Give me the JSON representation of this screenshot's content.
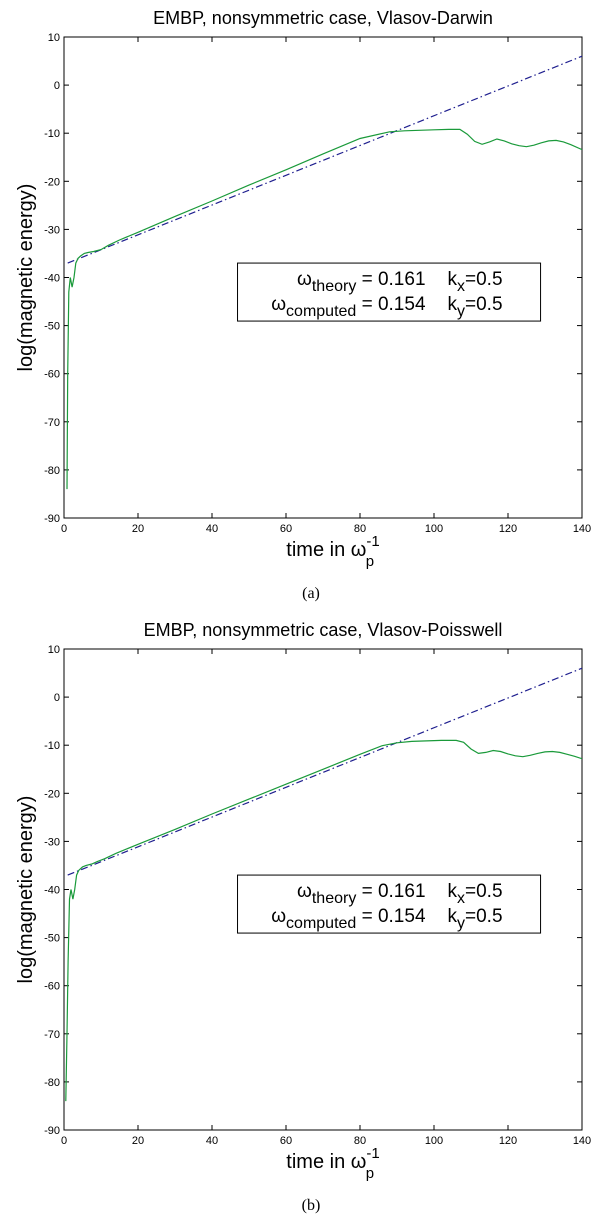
{
  "chart_data": [
    {
      "type": "line",
      "title": "EMBP,  nonsymmetric case, Vlasov-Darwin",
      "xlabel": "time in ω",
      "xlabel_sub": "p",
      "xlabel_sup": "-1",
      "ylabel": "log(magnetic energy)",
      "xlim": [
        0,
        140
      ],
      "ylim": [
        -90,
        10
      ],
      "xticks": [
        0,
        20,
        40,
        60,
        80,
        100,
        120,
        140
      ],
      "yticks": [
        10,
        0,
        -10,
        -20,
        -30,
        -40,
        -50,
        -60,
        -70,
        -80,
        -90
      ],
      "grid": false,
      "caption": "(a)",
      "legend_box": {
        "rows": [
          {
            "omega": "ω",
            "omega_sub": "theory",
            "eq": " = 0.161",
            "k": "k",
            "k_sub": "x",
            "k_eq": "=0.5"
          },
          {
            "omega": "ω",
            "omega_sub": "computed",
            "eq": " = 0.154",
            "k": "k",
            "k_sub": "y",
            "k_eq": "=0.5"
          }
        ]
      },
      "series": [
        {
          "style": "dash-dot",
          "color": "#1f1f8f",
          "x": [
            1,
            140
          ],
          "y": [
            -37,
            6
          ]
        },
        {
          "color": "#1a9a3a",
          "x": [
            0.8,
            1.0,
            1.3,
            1.7,
            2.2,
            2.7,
            3.2,
            3.8,
            4.5,
            5.5,
            6.5,
            8,
            10,
            12,
            15,
            20,
            30,
            40,
            50,
            60,
            70,
            80,
            88,
            92,
            96,
            100,
            104,
            107,
            109,
            111,
            113,
            115,
            117,
            119,
            121,
            123,
            125,
            127,
            129,
            131,
            133,
            135,
            137,
            140
          ],
          "y": [
            -84,
            -60,
            -43,
            -40,
            -42,
            -40,
            -37,
            -36,
            -35.5,
            -35,
            -34.8,
            -34.6,
            -34.2,
            -33.3,
            -32.2,
            -30.6,
            -27.3,
            -24.1,
            -20.8,
            -17.6,
            -14.3,
            -11.1,
            -9.7,
            -9.5,
            -9.4,
            -9.3,
            -9.2,
            -9.2,
            -10.2,
            -11.7,
            -12.3,
            -11.8,
            -11.2,
            -11.6,
            -12.2,
            -12.6,
            -12.8,
            -12.5,
            -12,
            -11.6,
            -11.5,
            -11.8,
            -12.4,
            -13.4
          ]
        }
      ]
    },
    {
      "type": "line",
      "title": "EMBP,  nonsymmetric case, Vlasov-Poisswell",
      "xlabel": "time in ω",
      "xlabel_sub": "p",
      "xlabel_sup": "-1",
      "ylabel": "log(magnetic energy)",
      "xlim": [
        0,
        140
      ],
      "ylim": [
        -90,
        10
      ],
      "xticks": [
        0,
        20,
        40,
        60,
        80,
        100,
        120,
        140
      ],
      "yticks": [
        10,
        0,
        -10,
        -20,
        -30,
        -40,
        -50,
        -60,
        -70,
        -80,
        -90
      ],
      "grid": false,
      "caption": "(b)",
      "legend_box": {
        "rows": [
          {
            "omega": "ω",
            "omega_sub": "theory",
            "eq": " = 0.161",
            "k": "k",
            "k_sub": "x",
            "k_eq": "=0.5"
          },
          {
            "omega": "ω",
            "omega_sub": "computed",
            "eq": " = 0.154",
            "k": "k",
            "k_sub": "y",
            "k_eq": "=0.5"
          }
        ]
      },
      "series": [
        {
          "style": "dash-dot",
          "color": "#1f1f8f",
          "x": [
            1,
            140
          ],
          "y": [
            -37,
            6
          ]
        },
        {
          "color": "#1a9a3a",
          "x": [
            0.5,
            0.8,
            1.1,
            1.5,
            1.9,
            2.4,
            2.9,
            3.4,
            4,
            5,
            6,
            7.5,
            9,
            11,
            14,
            20,
            30,
            40,
            50,
            60,
            70,
            80,
            86,
            90,
            94,
            98,
            102,
            106,
            108,
            110,
            112,
            114,
            116,
            118,
            120,
            122,
            124,
            126,
            128,
            130,
            132,
            134,
            136,
            138,
            140
          ],
          "y": [
            -84,
            -70,
            -55,
            -42,
            -40,
            -42,
            -40,
            -37,
            -36,
            -35.3,
            -35,
            -34.7,
            -34.2,
            -33.6,
            -32.5,
            -30.6,
            -27.5,
            -24.3,
            -21.2,
            -18.1,
            -15,
            -11.9,
            -10.1,
            -9.5,
            -9.2,
            -9.1,
            -9,
            -9,
            -9.4,
            -10.8,
            -11.7,
            -11.5,
            -11.1,
            -11.3,
            -11.8,
            -12.2,
            -12.4,
            -12.1,
            -11.7,
            -11.4,
            -11.3,
            -11.5,
            -11.9,
            -12.3,
            -12.8
          ]
        }
      ]
    }
  ]
}
